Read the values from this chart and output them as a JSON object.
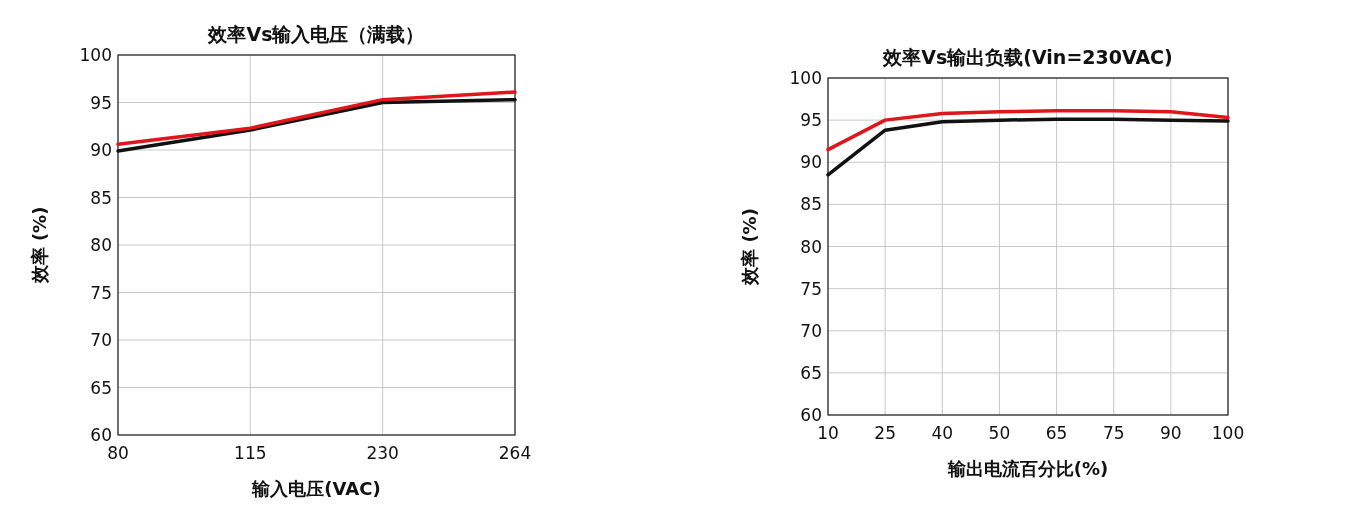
{
  "chart_data": [
    {
      "type": "line",
      "title": "效率Vs输入电压（满载）",
      "xlabel": "输入电压(VAC)",
      "ylabel": "效率 (%)",
      "categories": [
        "80",
        "115",
        "230",
        "264"
      ],
      "ylim": [
        60,
        100
      ],
      "yticks": [
        60,
        65,
        70,
        75,
        80,
        85,
        90,
        95,
        100
      ],
      "grid": true,
      "series": [
        {
          "color": "#111111",
          "values": [
            89.9,
            92.1,
            95.0,
            95.3
          ]
        },
        {
          "color": "#e0161b",
          "values": [
            90.6,
            92.3,
            95.3,
            96.1
          ]
        }
      ]
    },
    {
      "type": "line",
      "title": "效率Vs输出负载(Vin=230VAC)",
      "xlabel": "输出电流百分比(%)",
      "ylabel": "效率 (%)",
      "categories": [
        "10",
        "25",
        "40",
        "50",
        "65",
        "75",
        "90",
        "100"
      ],
      "ylim": [
        60,
        100
      ],
      "yticks": [
        60,
        65,
        70,
        75,
        80,
        85,
        90,
        95,
        100
      ],
      "grid": true,
      "series": [
        {
          "color": "#111111",
          "values": [
            88.5,
            93.8,
            94.8,
            95.0,
            95.1,
            95.1,
            95.0,
            94.9
          ]
        },
        {
          "color": "#e0161b",
          "values": [
            91.5,
            95.0,
            95.8,
            96.0,
            96.1,
            96.1,
            96.0,
            95.3
          ]
        }
      ]
    }
  ]
}
